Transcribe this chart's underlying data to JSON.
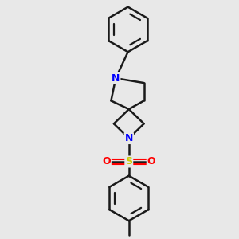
{
  "bg_color": "#e8e8e8",
  "line_color": "#1a1a1a",
  "N_color": "#0000ff",
  "O_color": "#ff0000",
  "S_color": "#cccc00",
  "bond_width": 1.8,
  "figsize": [
    3.0,
    3.0
  ],
  "dpi": 100,
  "xlim": [
    -1.3,
    1.3
  ],
  "ylim": [
    -1.0,
    4.0
  ]
}
